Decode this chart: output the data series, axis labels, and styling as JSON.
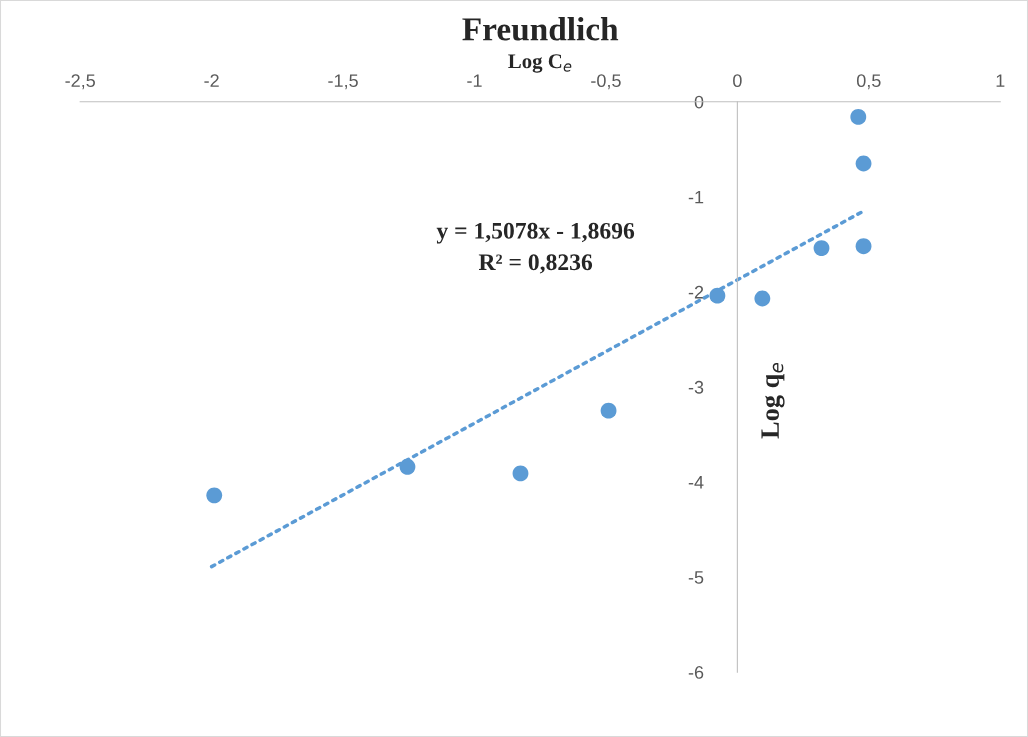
{
  "chart_data": {
    "type": "scatter",
    "title": "Freundlich",
    "xlabel": "Log C$_{e}$",
    "ylabel": "Log q$_{e}$",
    "annotations": [
      "y = 1,5078x - 1,8696",
      "R² = 0,8236"
    ],
    "series": [
      {
        "color": "#5b9bd5",
        "marker": "circle",
        "x": [
          -1.99,
          -1.255,
          -0.825,
          -0.49,
          -0.076,
          0.095,
          0.32,
          0.46,
          0.48,
          0.48
        ],
        "values": [
          -4.14,
          -3.84,
          -3.91,
          -3.25,
          -2.04,
          -2.07,
          -1.54,
          -0.16,
          -0.65,
          -1.52
        ]
      },
      {
        "type": "line",
        "color": "#5b9bd5",
        "line_style": "dotted",
        "x": [
          -2,
          0.48
        ],
        "values": [
          -4.89,
          -1.15
        ]
      }
    ],
    "xlim": [
      -2.5,
      1
    ],
    "ylim": [
      -6,
      0
    ],
    "xticks": [
      {
        "value": -2.5,
        "label": "-2,5"
      },
      -2,
      {
        "value": -1.5,
        "label": "-1,5"
      },
      -1,
      {
        "value": -0.5,
        "label": "-0,5"
      },
      0,
      {
        "value": 0.5,
        "label": "0,5"
      },
      1
    ],
    "yticks": [
      -6,
      -5,
      -4,
      -3,
      -2,
      -1,
      0
    ],
    "grid": false,
    "legend": false
  }
}
